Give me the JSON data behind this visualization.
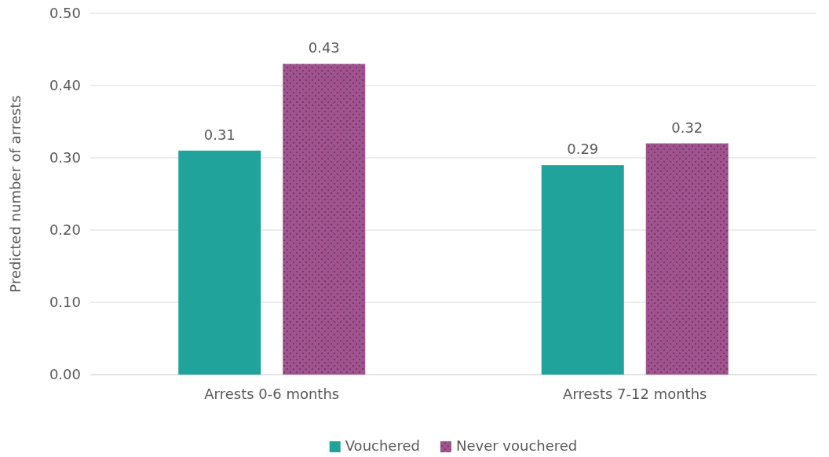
{
  "chart_data": {
    "type": "bar",
    "ylabel": "Predicted number of arrests",
    "categories": [
      "Arrests 0-6 months",
      "Arrests 7-12 months"
    ],
    "series": [
      {
        "name": "Vouchered",
        "color": "#1fa39b",
        "values": [
          0.31,
          0.29
        ]
      },
      {
        "name": "Never vouchered",
        "color": "#a0538f",
        "values": [
          0.43,
          0.32
        ]
      }
    ],
    "ylim": [
      0,
      0.5
    ],
    "yticks": [
      {
        "value": 0,
        "label": "0.00"
      },
      {
        "value": 0.1,
        "label": "0.10"
      },
      {
        "value": 0.2,
        "label": "0.20"
      },
      {
        "value": 0.3,
        "label": "0.30"
      },
      {
        "value": 0.4,
        "label": "0.40"
      },
      {
        "value": 0.5,
        "label": "0.50"
      }
    ],
    "grid": true,
    "legend": "bottom",
    "data_labels": true
  }
}
